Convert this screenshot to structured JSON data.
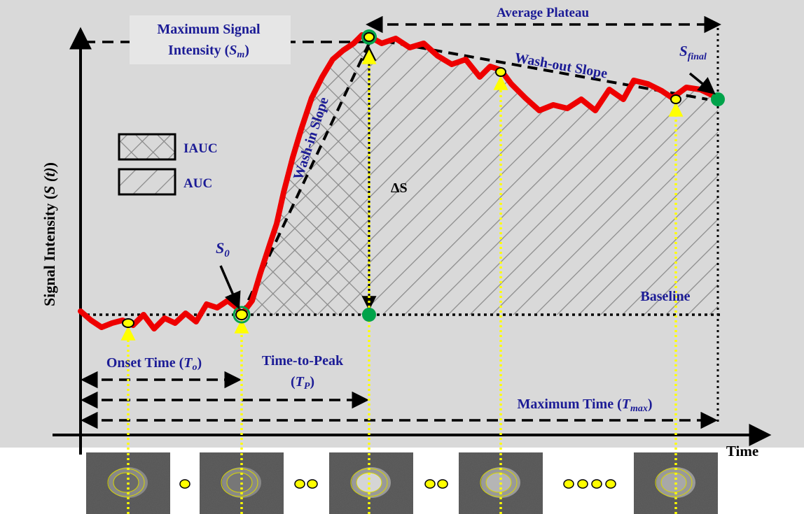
{
  "colors": {
    "background": "#ffffff",
    "panel": "#d9d9d9",
    "curve": "#ee0000",
    "label_blue": "#1c1c96",
    "marker_yellow": "#ffff00",
    "marker_green": "#00a34a",
    "guide_yellow": "#ffff00"
  },
  "axes": {
    "y_label_main": "Signal Intensity (",
    "y_label_s": "S",
    "y_label_t": "(t)",
    "y_label_close": ")",
    "x_label": "Time"
  },
  "labels": {
    "max_signal_line1": "Maximum Signal",
    "max_signal_line2": "Intensity (",
    "max_signal_sym": "S",
    "max_signal_sub": "m",
    "max_signal_close": ")",
    "average_plateau": "Average Plateau",
    "wash_out_slope": "Wash-out Slope",
    "wash_in_slope": "Wash-in Slope",
    "s_final": "S",
    "s_final_sub": "final",
    "s0": "S",
    "s0_sub": "0",
    "delta_s": "ΔS",
    "baseline": "Baseline",
    "onset_time": "Onset Time (",
    "onset_sym": "T",
    "onset_sub": "o",
    "onset_close": ")",
    "time_to_peak_line1": "Time-to-Peak",
    "time_to_peak_line2_open": "(",
    "time_to_peak_sym": "T",
    "time_to_peak_sub": "P",
    "time_to_peak_close": ")",
    "max_time": "Maximum Time (",
    "max_time_sym": "T",
    "max_time_sub": "max",
    "max_time_close": ")"
  },
  "legend": [
    {
      "label": "IAUC",
      "pattern": "crosshatch"
    },
    {
      "label": "AUC",
      "pattern": "hatch"
    }
  ],
  "thumbnails": [
    {
      "name": "frame-onset",
      "intensity": "low"
    },
    {
      "name": "frame-s0",
      "intensity": "low"
    },
    {
      "name": "frame-peak",
      "intensity": "high"
    },
    {
      "name": "frame-mid",
      "intensity": "medium"
    },
    {
      "name": "frame-final",
      "intensity": "medium"
    }
  ],
  "ellipsis_dots": [
    {
      "count": 1
    },
    {
      "count": 2
    },
    {
      "count": 2
    },
    {
      "count": 4
    }
  ]
}
